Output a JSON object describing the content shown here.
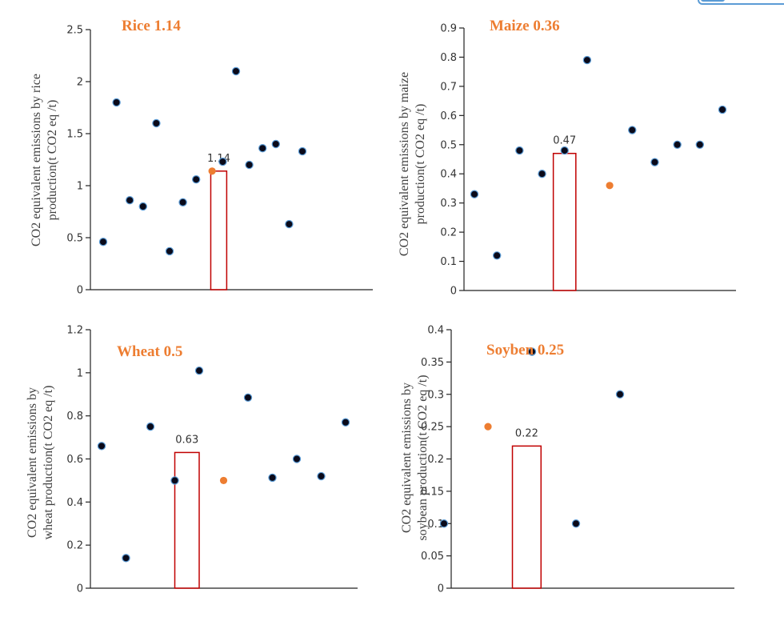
{
  "colors": {
    "point": "#0a0a1a",
    "point_edge": "#5B9BD5",
    "highlight": "#ED7D31",
    "bar": "#C00000",
    "axis": "#222222"
  },
  "chart_data": [
    {
      "type": "scatter",
      "title": "Rice 1.14",
      "ylabel_lines": [
        "CO2 equivalent emissions by rice",
        "production(t CO2 eq /t)"
      ],
      "ylim": [
        0,
        2.5
      ],
      "yticks": [
        0,
        0.5,
        1,
        1.5,
        2,
        2.5
      ],
      "ytick_labels": [
        "0",
        "0.5",
        "1",
        "1.5",
        "2",
        "2.5"
      ],
      "xlim": [
        0,
        16
      ],
      "points": [
        [
          1,
          0.46
        ],
        [
          2,
          1.8
        ],
        [
          3,
          0.86
        ],
        [
          4,
          0.8
        ],
        [
          5,
          1.6
        ],
        [
          6,
          0.37
        ],
        [
          7,
          0.84
        ],
        [
          8,
          1.06
        ],
        [
          10,
          1.23
        ],
        [
          11,
          2.1
        ],
        [
          12,
          1.2
        ],
        [
          13,
          1.36
        ],
        [
          14,
          1.4
        ],
        [
          15,
          0.63
        ],
        [
          16,
          1.33
        ]
      ],
      "highlight_point": [
        9.2,
        1.14
      ],
      "bar": {
        "x": 9.7,
        "value": 1.14,
        "width": 1.2,
        "label": "1.14"
      }
    },
    {
      "type": "scatter",
      "title": "Maize 0.36",
      "ylabel_lines": [
        "CO2 equivalent emissions by maize",
        "production(t CO2 eq /t)"
      ],
      "ylim": [
        0,
        0.9
      ],
      "yticks": [
        0,
        0.1,
        0.2,
        0.3,
        0.4,
        0.5,
        0.6,
        0.7,
        0.8,
        0.9
      ],
      "ytick_labels": [
        "0",
        "0.1",
        "0.2",
        "0.3",
        "0.4",
        "0.5",
        "0.6",
        "0.7",
        "0.8",
        "0.9"
      ],
      "xlim": [
        0,
        12
      ],
      "points": [
        [
          1,
          0.33
        ],
        [
          2,
          0.12
        ],
        [
          3,
          0.48
        ],
        [
          4,
          0.4
        ],
        [
          5,
          0.48
        ],
        [
          6,
          0.79
        ],
        [
          8,
          0.55
        ],
        [
          9,
          0.44
        ],
        [
          10,
          0.5
        ],
        [
          11,
          0.5
        ],
        [
          12,
          0.62
        ]
      ],
      "highlight_point": [
        7,
        0.36
      ],
      "bar": {
        "x": 5.0,
        "value": 0.47,
        "width": 1.0,
        "label": "0.47"
      }
    },
    {
      "type": "scatter",
      "title": "Wheat 0.5",
      "ylabel_lines": [
        "CO2 equivalent emissions by",
        "wheat production(t CO2 eq /t)"
      ],
      "ylim": [
        0,
        1.2
      ],
      "yticks": [
        0,
        0.2,
        0.4,
        0.6,
        0.8,
        1,
        1.2
      ],
      "ytick_labels": [
        "0",
        "0.2",
        "0.4",
        "0.6",
        "0.8",
        "1",
        "1.2"
      ],
      "xlim": [
        0,
        11
      ],
      "points": [
        [
          1,
          0.66
        ],
        [
          2,
          0.14
        ],
        [
          3,
          0.75
        ],
        [
          4,
          0.5
        ],
        [
          5,
          1.01
        ],
        [
          7,
          0.885
        ],
        [
          8,
          0.513
        ],
        [
          9,
          0.6
        ],
        [
          10,
          0.52
        ],
        [
          11,
          0.77
        ]
      ],
      "highlight_point": [
        6,
        0.5
      ],
      "bar": {
        "x": 4.5,
        "value": 0.63,
        "width": 1.0,
        "label": "0.63"
      }
    },
    {
      "type": "scatter",
      "title": "Soyben 0.25",
      "ylabel_lines": [
        "CO2 equivalent emissions by",
        "soybean production(t CO2 eq /t)"
      ],
      "ylim": [
        0,
        0.4
      ],
      "yticks": [
        0,
        0.05,
        0.1,
        0.15,
        0.2,
        0.25,
        0.3,
        0.35,
        0.4
      ],
      "ytick_labels": [
        "0",
        "0.05",
        "0.1",
        "0.15",
        "0.2",
        "0.25",
        "0.3",
        "0.35",
        "0.4"
      ],
      "xlim": [
        0,
        7
      ],
      "points": [
        [
          1,
          0.1
        ],
        [
          3,
          0.366
        ],
        [
          4,
          0.1
        ],
        [
          5,
          0.3
        ]
      ],
      "highlight_point": [
        2,
        0.25
      ],
      "bar": {
        "x": 2.88,
        "value": 0.22,
        "width": 0.65,
        "label": "0.22"
      }
    }
  ]
}
